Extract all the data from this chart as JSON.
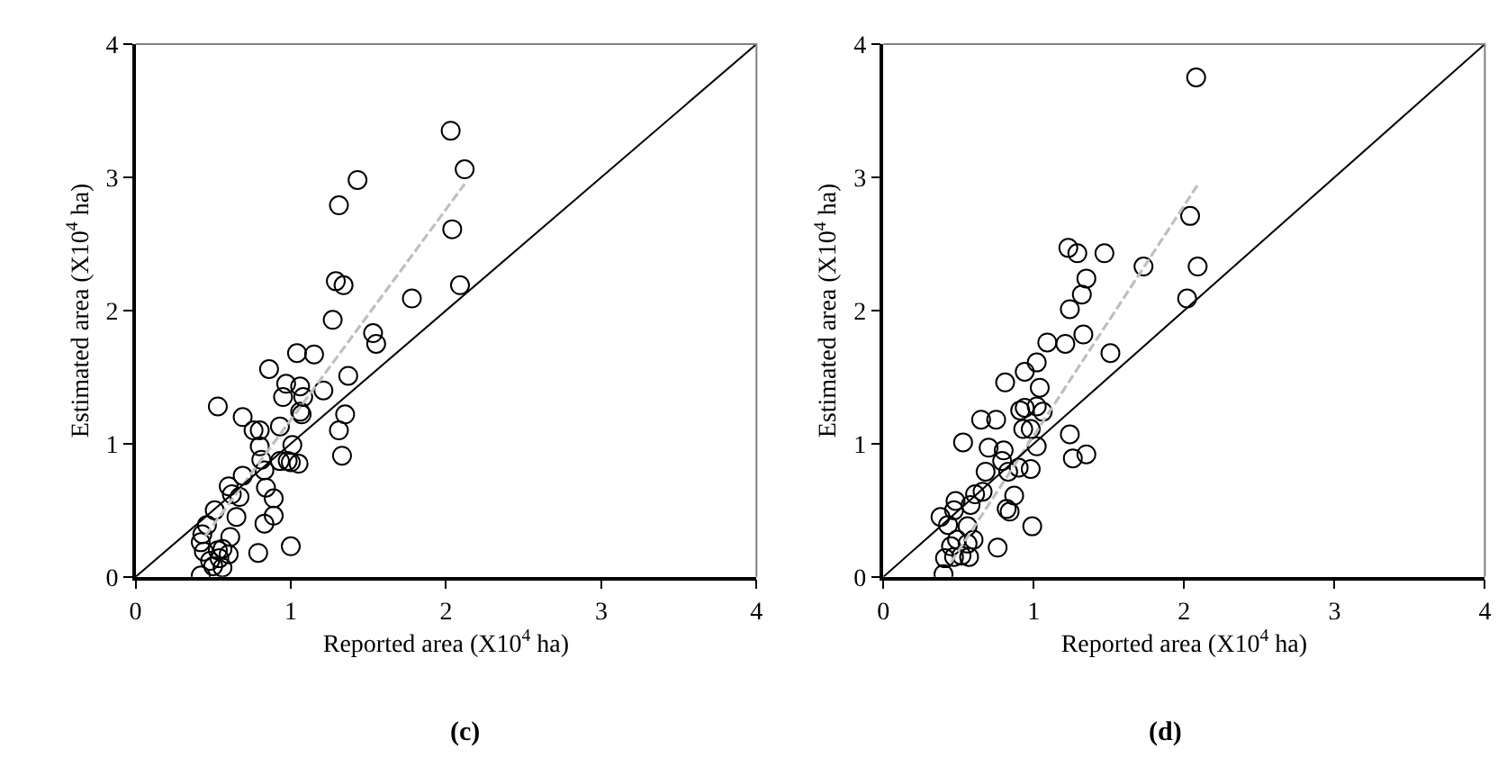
{
  "chart_data": [
    {
      "type": "scatter",
      "title": "(c)",
      "xlabel": "Reported area (X10$^{4}$ ha)",
      "ylabel": "Estimated area (X10$^{4}$ ha)",
      "xlim": [
        0,
        4
      ],
      "ylim": [
        0,
        4
      ],
      "xticks": [
        0,
        1,
        2,
        3,
        4
      ],
      "yticks": [
        0,
        1,
        2,
        3,
        4
      ],
      "grid": false,
      "series": [
        {
          "type": "scatter",
          "marker": "circle",
          "color": "#000000",
          "x": [
            2.03,
            2.12,
            1.43,
            1.31,
            2.04,
            1.29,
            1.34,
            2.09,
            1.78,
            1.27,
            1.53,
            1.55,
            1.04,
            1.15,
            0.86,
            1.37,
            1.21,
            0.97,
            1.06,
            0.95,
            1.08,
            1.06,
            1.07,
            1.35,
            1.31,
            1.33,
            0.53,
            0.69,
            0.76,
            0.8,
            0.93,
            1.01,
            0.8,
            0.81,
            0.98,
            1.0,
            1.05,
            0.93,
            0.83,
            0.69,
            0.6,
            0.62,
            0.67,
            0.84,
            0.89,
            0.65,
            0.89,
            0.83,
            0.51,
            0.46,
            0.43,
            0.61,
            0.56,
            0.79,
            1.0,
            0.42,
            0.48,
            0.54,
            0.6,
            0.44,
            0.5,
            0.56,
            0.53,
            0.42
          ],
          "values": [
            3.35,
            3.06,
            2.98,
            2.79,
            2.61,
            2.22,
            2.19,
            2.19,
            2.09,
            1.93,
            1.83,
            1.75,
            1.68,
            1.67,
            1.56,
            1.51,
            1.4,
            1.45,
            1.43,
            1.35,
            1.35,
            1.24,
            1.22,
            1.22,
            1.1,
            0.91,
            1.28,
            1.2,
            1.1,
            1.1,
            1.13,
            0.99,
            0.98,
            0.88,
            0.87,
            0.86,
            0.85,
            0.87,
            0.8,
            0.76,
            0.68,
            0.62,
            0.6,
            0.67,
            0.59,
            0.45,
            0.46,
            0.4,
            0.5,
            0.39,
            0.32,
            0.3,
            0.21,
            0.18,
            0.23,
            0.01,
            0.12,
            0.14,
            0.17,
            0.19,
            0.08,
            0.07,
            0.2,
            0.26
          ]
        },
        {
          "type": "line",
          "marker": "none",
          "line_style": "dashed",
          "color": "#bfbfbf",
          "x": [
            0.45,
            2.12
          ],
          "values": [
            0.31,
            2.95
          ]
        },
        {
          "type": "line",
          "marker": "none",
          "line_style": "solid",
          "color": "#000000",
          "x": [
            0,
            4
          ],
          "values": [
            0,
            4
          ]
        }
      ]
    },
    {
      "type": "scatter",
      "title": "(d)",
      "xlabel": "Reported area (X10$^{4}$ ha)",
      "ylabel": "Estimated area (X10$^{4}$ ha)",
      "xlim": [
        0,
        4
      ],
      "ylim": [
        0,
        4
      ],
      "xticks": [
        0,
        1,
        2,
        3,
        4
      ],
      "yticks": [
        0,
        1,
        2,
        3,
        4
      ],
      "grid": false,
      "series": [
        {
          "type": "scatter",
          "marker": "circle",
          "color": "#000000",
          "x": [
            2.08,
            2.04,
            2.09,
            2.02,
            1.73,
            1.23,
            1.29,
            1.47,
            1.35,
            1.32,
            1.24,
            1.09,
            1.21,
            1.33,
            1.51,
            1.02,
            0.94,
            0.81,
            1.04,
            0.94,
            0.91,
            1.02,
            1.06,
            0.65,
            0.75,
            0.98,
            0.93,
            1.02,
            1.24,
            1.26,
            1.35,
            0.53,
            0.7,
            0.8,
            0.79,
            0.83,
            0.9,
            0.98,
            0.68,
            0.66,
            0.61,
            0.58,
            0.87,
            0.82,
            0.84,
            0.99,
            0.76,
            0.38,
            0.48,
            0.47,
            0.43,
            0.56,
            0.49,
            0.56,
            0.6,
            0.45,
            0.41,
            0.47,
            0.52,
            0.57,
            0.4
          ],
          "values": [
            3.75,
            2.71,
            2.33,
            2.09,
            2.33,
            2.47,
            2.43,
            2.43,
            2.24,
            2.12,
            2.01,
            1.76,
            1.75,
            1.82,
            1.68,
            1.61,
            1.54,
            1.46,
            1.42,
            1.27,
            1.25,
            1.28,
            1.24,
            1.18,
            1.18,
            1.11,
            1.11,
            0.98,
            1.07,
            0.89,
            0.92,
            1.01,
            0.97,
            0.95,
            0.87,
            0.79,
            0.82,
            0.81,
            0.79,
            0.64,
            0.62,
            0.54,
            0.61,
            0.51,
            0.49,
            0.38,
            0.22,
            0.45,
            0.57,
            0.5,
            0.39,
            0.38,
            0.28,
            0.25,
            0.28,
            0.23,
            0.14,
            0.15,
            0.16,
            0.15,
            0.02
          ]
        },
        {
          "type": "line",
          "marker": "none",
          "line_style": "dashed",
          "color": "#bfbfbf",
          "x": [
            0.45,
            2.1
          ],
          "values": [
            0.11,
            2.96
          ]
        },
        {
          "type": "line",
          "marker": "none",
          "line_style": "solid",
          "color": "#000000",
          "x": [
            0,
            4
          ],
          "values": [
            0,
            4
          ]
        }
      ]
    }
  ]
}
